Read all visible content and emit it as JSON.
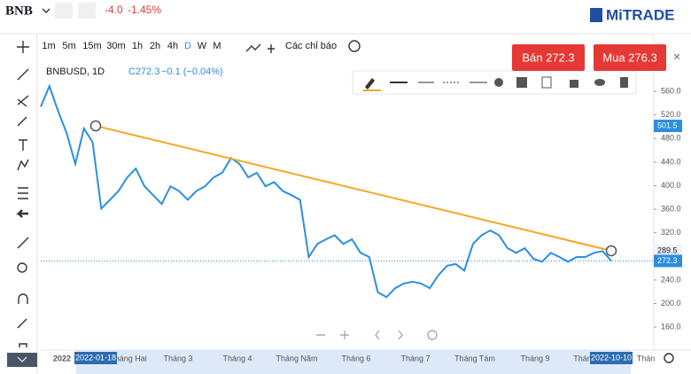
{
  "header": {
    "symbol": "BNB",
    "change": "-4.0",
    "change_pct": "-1.45%",
    "logo": "MiTRADE"
  },
  "toolbar": {
    "timeframes": [
      "1m",
      "5m",
      "15m",
      "30m",
      "1h",
      "2h",
      "4h",
      "D",
      "W",
      "M"
    ],
    "indicators": "Các chỉ báo"
  },
  "legend": {
    "symbol": "BNBUSD, 1D",
    "close": "C272.3",
    "change": "−0.1 (−0.04%)"
  },
  "buttons": {
    "sell": "Bán 272.3",
    "buy": "Mua 276.3"
  },
  "chart_data": {
    "type": "line",
    "color": "#2b8fe0",
    "values": [
      534,
      569,
      527,
      489,
      437,
      497,
      474,
      361,
      376,
      391,
      414,
      429,
      399,
      384,
      369,
      399,
      391,
      376,
      391,
      399,
      414,
      422,
      447,
      437,
      414,
      422,
      399,
      406,
      391,
      384,
      376,
      279,
      301,
      309,
      316,
      301,
      309,
      286,
      279,
      219,
      211,
      226,
      234,
      237,
      234,
      226,
      248,
      264,
      267,
      256,
      301,
      316,
      324,
      316,
      294,
      286,
      294,
      276,
      271,
      286,
      279,
      271,
      279,
      279,
      286,
      289,
      272.3
    ],
    "ylim": [
      121,
      658
    ],
    "yticks": [
      {
        "value": 160,
        "label": "160.0"
      },
      {
        "value": 200,
        "label": "200.0"
      },
      {
        "value": 240,
        "label": "240.0"
      },
      {
        "value": 280,
        "label": "280.0"
      },
      {
        "value": 320,
        "label": "320.0"
      },
      {
        "value": 360,
        "label": "360.0"
      },
      {
        "value": 400,
        "label": "400.0"
      },
      {
        "value": 440,
        "label": "440.0"
      },
      {
        "value": 480,
        "label": "480.0"
      },
      {
        "value": 520,
        "label": "520.0"
      },
      {
        "value": 560,
        "label": "560.0"
      }
    ],
    "xlabels": [
      "2022",
      "Tháng Hai",
      "Tháng 3",
      "Tháng 4",
      "Tháng Năm",
      "Tháng 6",
      "Tháng 7",
      "Tháng Tám",
      "Tháng 9",
      "Tháng",
      "Thán"
    ],
    "start_date": "2022-01-18",
    "end_date": "2022-10-10",
    "trendline": {
      "color": "#f5a623",
      "start": 501.5,
      "end": 289.5
    },
    "last_price": 272.3
  }
}
